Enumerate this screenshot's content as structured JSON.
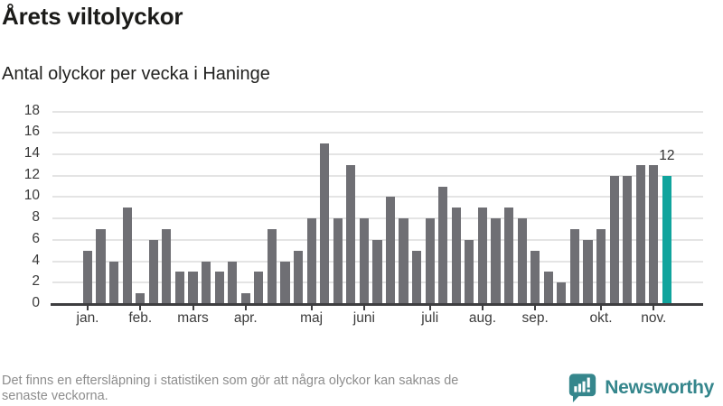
{
  "header": {
    "title": "Årets viltolyckor",
    "subtitle": "Antal olyckor per vecka i Haninge"
  },
  "chart_data": {
    "type": "bar",
    "title": "Årets viltolyckor",
    "subtitle": "Antal olyckor per vecka i Haninge",
    "values": [
      5,
      7,
      4,
      9,
      1,
      6,
      7,
      3,
      3,
      4,
      3,
      4,
      1,
      3,
      7,
      4,
      5,
      8,
      15,
      8,
      13,
      8,
      6,
      10,
      8,
      5,
      8,
      11,
      9,
      6,
      9,
      8,
      9,
      8,
      5,
      3,
      2,
      7,
      6,
      7,
      12,
      12,
      13,
      13,
      12
    ],
    "first_week": 1,
    "month_ticks": [
      {
        "label": "jan.",
        "week": 1
      },
      {
        "label": "feb.",
        "week": 5
      },
      {
        "label": "mars",
        "week": 9
      },
      {
        "label": "apr.",
        "week": 13
      },
      {
        "label": "maj",
        "week": 18
      },
      {
        "label": "juni",
        "week": 22
      },
      {
        "label": "juli",
        "week": 27
      },
      {
        "label": "aug.",
        "week": 31
      },
      {
        "label": "sep.",
        "week": 35
      },
      {
        "label": "okt.",
        "week": 40
      },
      {
        "label": "nov.",
        "week": 44
      }
    ],
    "yticks": [
      0,
      2,
      4,
      6,
      8,
      10,
      12,
      14,
      16,
      18
    ],
    "ylim": [
      0,
      18
    ],
    "grid": true,
    "legend": "none",
    "bar_color": "#6f6f74",
    "highlight_color": "#10a49d",
    "highlight_index": 44,
    "annotation": {
      "text": "12",
      "index": 44
    }
  },
  "footer": {
    "note_line1": "Det finns en eftersläpning i statistiken som gör att några olyckor kan saknas de",
    "note_line2": "senaste veckorna.",
    "logo_text": "Newsworthy",
    "logo_color": "#35868c"
  }
}
